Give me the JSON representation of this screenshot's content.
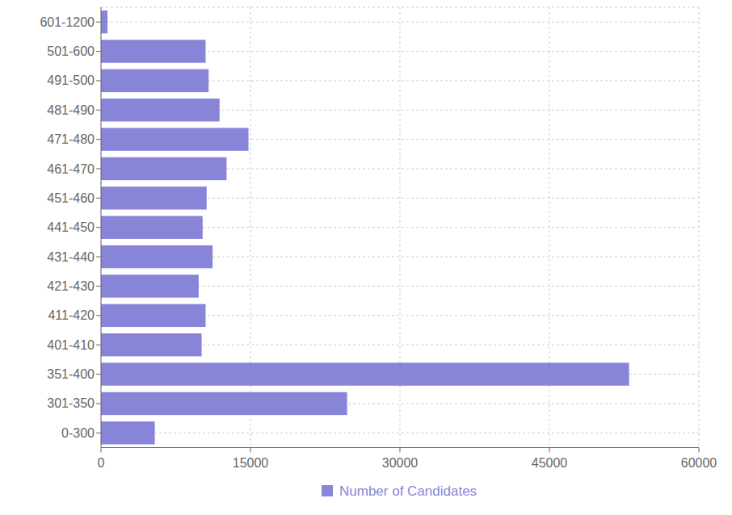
{
  "chart_data": {
    "type": "bar",
    "orientation": "horizontal",
    "categories": [
      "601-1200",
      "501-600",
      "491-500",
      "481-490",
      "471-480",
      "461-470",
      "451-460",
      "441-450",
      "431-440",
      "421-430",
      "411-420",
      "401-410",
      "351-400",
      "301-350",
      "0-300"
    ],
    "series": [
      {
        "name": "Number of Candidates",
        "color": "#8884d8",
        "values": [
          650,
          10500,
          10800,
          11900,
          14800,
          12600,
          10600,
          10200,
          11200,
          9800,
          10500,
          10100,
          53000,
          24700,
          5400
        ]
      }
    ],
    "xlim": [
      0,
      60000
    ],
    "xticks": [
      0,
      15000,
      30000,
      45000,
      60000
    ],
    "grid": true,
    "legend": "bottom"
  }
}
